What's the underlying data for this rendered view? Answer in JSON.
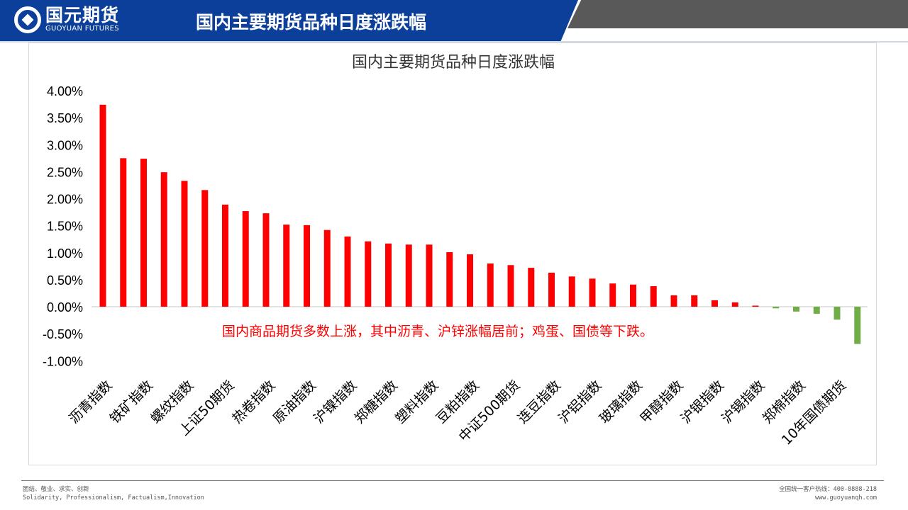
{
  "header": {
    "logo_cn": "国元期货",
    "logo_en": "GUOYUAN FUTURES",
    "title": "国内主要期货品种日度涨跌幅"
  },
  "footer": {
    "motto_cn": "团结、敬业、求实、创新",
    "motto_en": "Solidarity, Professionalism, Factualism,Innovation",
    "hotline": "全国统一客户热线：400-8888-218",
    "website": "www.guoyuanqh.com"
  },
  "colors": {
    "up": "#ff0000",
    "down": "#70ad47",
    "header": "#0b3f9a"
  },
  "chart_data": {
    "type": "bar",
    "title": "国内主要期货品种日度涨跌幅",
    "annotation": "国内商品期货多数上涨，其中沥青、沪锌涨幅居前；鸡蛋、国债等下跌。",
    "xlabel": "",
    "ylabel": "",
    "ylim": [
      -0.01,
      0.04
    ],
    "yticks": [
      "4.00%",
      "3.50%",
      "3.00%",
      "2.50%",
      "2.00%",
      "1.50%",
      "1.00%",
      "0.50%",
      "0.00%",
      "-0.50%",
      "-1.00%"
    ],
    "ytick_values": [
      0.04,
      0.035,
      0.03,
      0.025,
      0.02,
      0.015,
      0.01,
      0.005,
      0,
      -0.005,
      -0.01
    ],
    "categories": [
      "沥青指数",
      "",
      "铁矿指数",
      "",
      "螺纹指数",
      "",
      "上证50期货",
      "",
      "热卷指数",
      "",
      "原油指数",
      "",
      "沪镍指数",
      "",
      "郑糖指数",
      "",
      "塑料指数",
      "",
      "豆粕指数",
      "",
      "中证500期货",
      "",
      "连豆指数",
      "",
      "沪铝指数",
      "",
      "玻璃指数",
      "",
      "甲醇指数",
      "",
      "沪银指数",
      "",
      "沪锡指数",
      "",
      "郑棉指数",
      "",
      "10年国债期货",
      ""
    ],
    "values": [
      0.0374,
      0.0275,
      0.0274,
      0.0249,
      0.0233,
      0.0216,
      0.0189,
      0.0177,
      0.0173,
      0.0152,
      0.0151,
      0.0142,
      0.013,
      0.0121,
      0.0117,
      0.0115,
      0.0115,
      0.0101,
      0.0097,
      0.008,
      0.0077,
      0.0072,
      0.0063,
      0.0056,
      0.0052,
      0.0043,
      0.0041,
      0.0038,
      0.0021,
      0.0021,
      0.0012,
      0.0008,
      0.0002,
      -0.0003,
      -0.0009,
      -0.0013,
      -0.0024,
      -0.0069
    ]
  }
}
